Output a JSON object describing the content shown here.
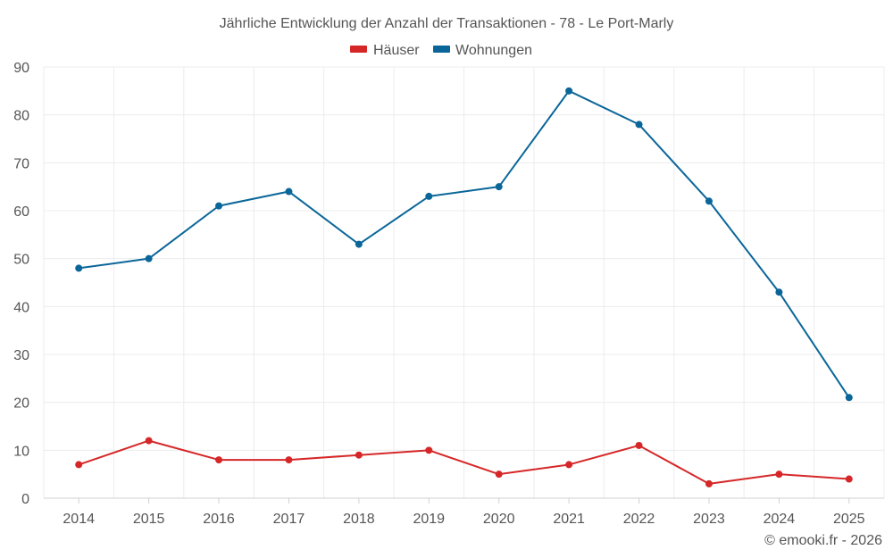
{
  "chart_data": {
    "type": "line",
    "title": "Jährliche Entwicklung der Anzahl der Transaktionen - 78 - Le Port-Marly",
    "categories": [
      "2014",
      "2015",
      "2016",
      "2017",
      "2018",
      "2019",
      "2020",
      "2021",
      "2022",
      "2023",
      "2024",
      "2025"
    ],
    "series": [
      {
        "name": "Häuser",
        "color": "#d62728",
        "values": [
          7,
          12,
          8,
          8,
          9,
          10,
          5,
          7,
          11,
          3,
          5,
          4
        ]
      },
      {
        "name": "Wohnungen",
        "color": "#0a6699",
        "values": [
          48,
          50,
          61,
          64,
          53,
          63,
          65,
          85,
          78,
          62,
          43,
          21
        ]
      }
    ],
    "ylim": [
      0,
      90
    ],
    "yticks": [
      0,
      10,
      20,
      30,
      40,
      50,
      60,
      70,
      80,
      90
    ],
    "grid": true,
    "legend": "top-center",
    "xlabel": "",
    "ylabel": ""
  },
  "credit": "© emooki.fr - 2026"
}
